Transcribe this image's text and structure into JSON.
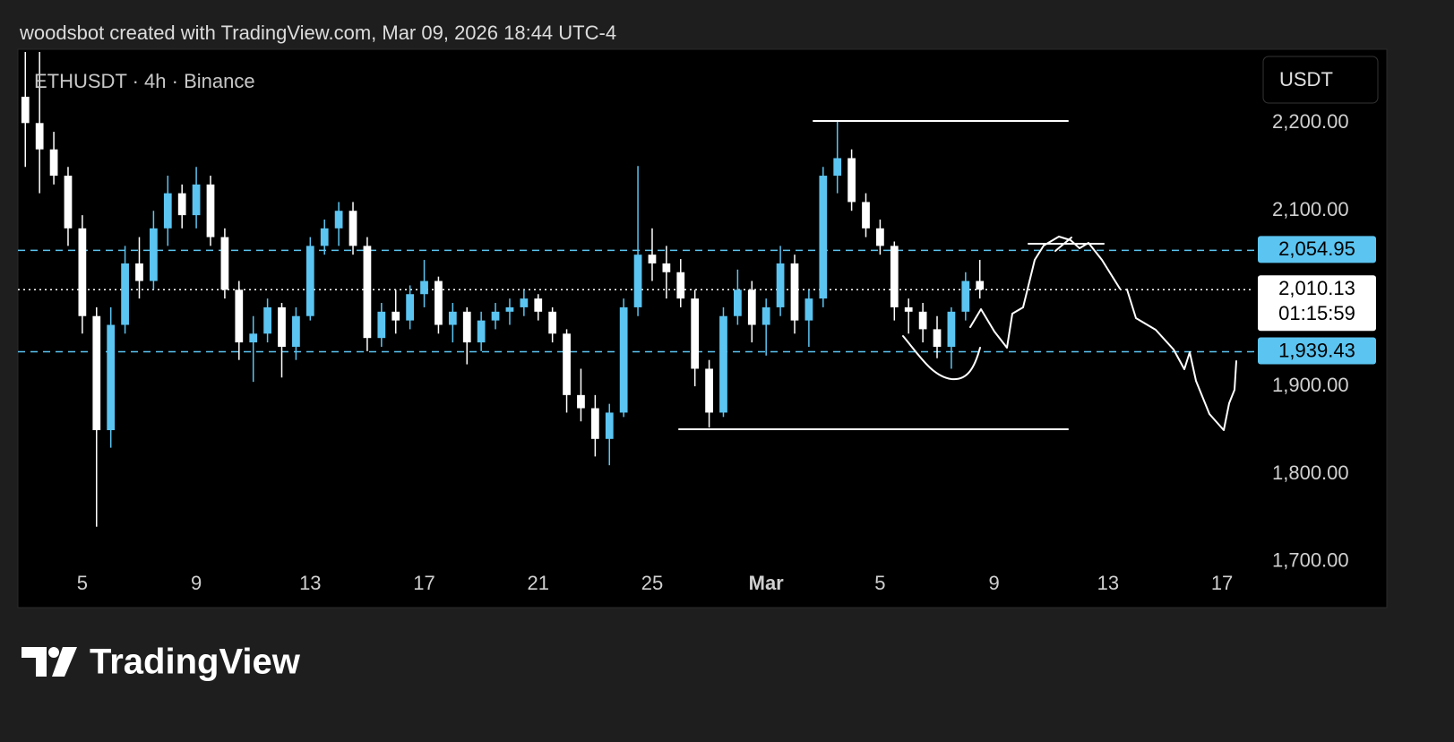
{
  "header": "woodsbot created with TradingView.com, Mar 09, 2026 18:44 UTC-4",
  "branding": "TradingView",
  "chart_data": {
    "type": "candlestick",
    "symbol": "ETHUSDT · 4h · Binance",
    "currency": "USDT",
    "up_color": "#5bc4f0",
    "down_color": "#ffffff",
    "grid": false,
    "xlim": [
      2.74,
      46.13
    ],
    "xticks": [
      5,
      9,
      13,
      17,
      21,
      25,
      {
        "value": 29,
        "label": "Mar"
      },
      {
        "value": 33,
        "label": "5"
      },
      {
        "value": 37,
        "label": "9"
      },
      {
        "value": 41,
        "label": "13"
      },
      {
        "value": 45,
        "label": "17"
      }
    ],
    "ylim": [
      1658,
      2281
    ],
    "yticks": [
      {
        "value": 1700,
        "label": "1,700.00"
      },
      {
        "value": 1800,
        "label": "1,800.00"
      },
      {
        "value": 1900,
        "label": "1,900.00"
      },
      {
        "value": 2100,
        "label": "2,100.00"
      },
      {
        "value": 2200,
        "label": "2,200.00"
      }
    ],
    "price_lines": [
      {
        "value": 2054.95,
        "label": "2,054.95",
        "color": "#5bc4f0"
      },
      {
        "value": 2010.13,
        "label": "2,010.13",
        "color": "#ffffff",
        "countdown": "01:15:59"
      },
      {
        "value": 1939.43,
        "label": "1,939.43",
        "color": "#5bc4f0"
      }
    ],
    "x": [
      3.0,
      3.5,
      4.0,
      4.5,
      5.0,
      5.5,
      6.0,
      6.5,
      7.0,
      7.5,
      8.0,
      8.5,
      9.0,
      9.5,
      10.0,
      10.5,
      11.0,
      11.5,
      12.0,
      12.5,
      13.0,
      13.5,
      14.0,
      14.5,
      15.0,
      15.5,
      16.0,
      16.5,
      17.0,
      17.5,
      18.0,
      18.5,
      19.0,
      19.5,
      20.0,
      20.5,
      21.0,
      21.5,
      22.0,
      22.5,
      23.0,
      23.5,
      24.0,
      24.5,
      25.0,
      25.5,
      26.0,
      26.5,
      27.0,
      27.5,
      28.0,
      28.5,
      29.0,
      29.5,
      30.0,
      30.5,
      31.0,
      31.5,
      32.0,
      32.5,
      33.0,
      33.5,
      34.0,
      34.5,
      35.0,
      35.5,
      36.0,
      36.5
    ],
    "open": [
      2230,
      2200,
      2170,
      2140,
      2080,
      1980,
      1850,
      1970,
      2040,
      2020,
      2080,
      2120,
      2095,
      2130,
      2070,
      2010,
      1950,
      1960,
      1990,
      1945,
      1980,
      2060,
      2080,
      2100,
      2060,
      1955,
      1985,
      1975,
      2005,
      2020,
      1970,
      1985,
      1950,
      1975,
      1985,
      1990,
      2000,
      1985,
      1960,
      1890,
      1875,
      1840,
      1870,
      1990,
      2050,
      2040,
      2030,
      2000,
      1920,
      1870,
      1980,
      2010,
      1970,
      1990,
      2040,
      1975,
      2000,
      2140,
      2160,
      2110,
      2080,
      2060,
      1990,
      1985,
      1965,
      1945,
      1985,
      2020
    ],
    "high": [
      2281,
      2281,
      2190,
      2150,
      2095,
      1990,
      1990,
      2060,
      2070,
      2100,
      2140,
      2130,
      2150,
      2140,
      2080,
      2020,
      1980,
      2000,
      1995,
      1990,
      2070,
      2090,
      2110,
      2110,
      2070,
      1995,
      2010,
      2015,
      2044,
      2025,
      1995,
      1990,
      1985,
      1995,
      2000,
      2010,
      2005,
      1990,
      1965,
      1920,
      1890,
      1880,
      2000,
      2151,
      2080,
      2060,
      2045,
      2010,
      1930,
      1990,
      2033,
      2020,
      2000,
      2060,
      2050,
      2010,
      2150,
      2202,
      2170,
      2120,
      2090,
      2065,
      2000,
      1995,
      1980,
      1990,
      2030,
      2044
    ],
    "low": [
      2150,
      2120,
      2130,
      2060,
      1960,
      1740,
      1830,
      1960,
      2000,
      2010,
      2060,
      2080,
      2080,
      2060,
      2000,
      1930,
      1905,
      1950,
      1910,
      1930,
      1975,
      2050,
      2060,
      2050,
      1940,
      1945,
      1960,
      1965,
      1990,
      1960,
      1950,
      1925,
      1940,
      1965,
      1970,
      1980,
      1975,
      1950,
      1870,
      1860,
      1820,
      1810,
      1865,
      1980,
      2020,
      2000,
      1990,
      1900,
      1853,
      1865,
      1970,
      1950,
      1935,
      1980,
      1960,
      1945,
      1990,
      2120,
      2100,
      2070,
      2050,
      1975,
      1960,
      1950,
      1932,
      1920,
      1975,
      2000
    ],
    "close": [
      2200,
      2170,
      2140,
      2080,
      1980,
      1850,
      1970,
      2040,
      2020,
      2080,
      2120,
      2095,
      2130,
      2070,
      2010,
      1950,
      1960,
      1990,
      1945,
      1980,
      2060,
      2080,
      2100,
      2060,
      1955,
      1985,
      1975,
      2005,
      2020,
      1970,
      1985,
      1950,
      1975,
      1985,
      1990,
      2000,
      1985,
      1960,
      1890,
      1875,
      1840,
      1870,
      1990,
      2050,
      2040,
      2030,
      2000,
      1920,
      1870,
      1980,
      2010,
      1970,
      1990,
      2040,
      1975,
      2000,
      2140,
      2160,
      2110,
      2080,
      2060,
      1990,
      1985,
      1965,
      1945,
      1985,
      2020,
      2010.13
    ]
  }
}
